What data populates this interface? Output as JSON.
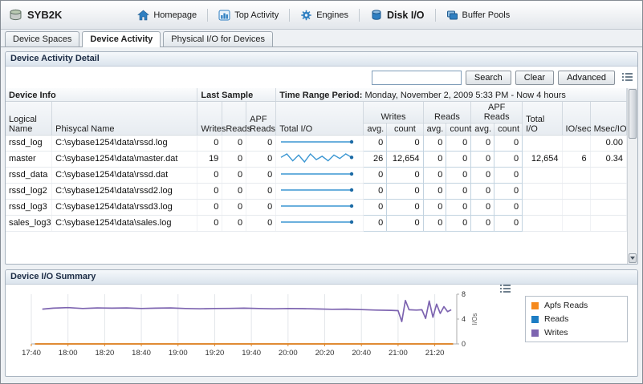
{
  "window": {
    "server_name": "SYB2K"
  },
  "nav": {
    "items": [
      {
        "label": "Homepage"
      },
      {
        "label": "Top Activity"
      },
      {
        "label": "Engines"
      },
      {
        "label": "Disk I/O"
      },
      {
        "label": "Buffer Pools"
      }
    ]
  },
  "tabs": {
    "items": [
      {
        "label": "Device Spaces"
      },
      {
        "label": "Device Activity"
      },
      {
        "label": "Physical I/O for Devices"
      }
    ]
  },
  "detail": {
    "title": "Device Activity Detail",
    "search_value": "",
    "buttons": {
      "search": "Search",
      "clear": "Clear",
      "advanced": "Advanced"
    },
    "group_headers": {
      "device_info": "Device Info",
      "last_sample": "Last Sample",
      "time_range_label": "Time Range Period:",
      "time_range_value": "Monday, November 2, 2009  5:33 PM - Now  4 hours"
    },
    "columns": {
      "logical": "Logical Name",
      "physical": "Phisycal Name",
      "writes": "Writes",
      "reads": "Reads",
      "apf_reads": "APF Reads",
      "total_io_spark": "Total I/O",
      "grp_writes": "Writes",
      "grp_reads": "Reads",
      "grp_apf_reads": "APF Reads",
      "avg": "avg.",
      "count": "count",
      "total_io": "Total I/O",
      "io_sec": "IO/sec",
      "msec_io": "Msec/IO"
    },
    "rows": [
      {
        "logical": "rssd_log",
        "physical": "C:\\sybase1254\\data\\rssd.log",
        "writes": "0",
        "reads": "0",
        "apf_reads": "0",
        "w_avg": "0",
        "w_count": "0",
        "r_avg": "0",
        "r_count": "0",
        "a_avg": "0",
        "a_count": "0",
        "total_io": "",
        "io_sec": "",
        "msec_io": "0.00",
        "spark": [
          0,
          0,
          0,
          0,
          0,
          0,
          0,
          0,
          0,
          0
        ]
      },
      {
        "logical": "master",
        "physical": "C:\\sybase1254\\data\\master.dat",
        "writes": "19",
        "reads": "0",
        "apf_reads": "0",
        "w_avg": "26",
        "w_count": "12,654",
        "r_avg": "0",
        "r_count": "0",
        "a_avg": "0",
        "a_count": "0",
        "total_io": "12,654",
        "io_sec": "6",
        "msec_io": "0.34",
        "spark": [
          5.6,
          5.9,
          5.3,
          5.8,
          5.2,
          5.9,
          5.4,
          5.7,
          5.3,
          5.8,
          5.5,
          5.9,
          5.6
        ]
      },
      {
        "logical": "rssd_data",
        "physical": "C:\\sybase1254\\data\\rssd.dat",
        "writes": "0",
        "reads": "0",
        "apf_reads": "0",
        "w_avg": "0",
        "w_count": "0",
        "r_avg": "0",
        "r_count": "0",
        "a_avg": "0",
        "a_count": "0",
        "total_io": "",
        "io_sec": "",
        "msec_io": "",
        "spark": [
          0,
          0,
          0,
          0,
          0,
          0,
          0,
          0,
          0,
          0
        ]
      },
      {
        "logical": "rssd_log2",
        "physical": "C:\\sybase1254\\data\\rssd2.log",
        "writes": "0",
        "reads": "0",
        "apf_reads": "0",
        "w_avg": "0",
        "w_count": "0",
        "r_avg": "0",
        "r_count": "0",
        "a_avg": "0",
        "a_count": "0",
        "total_io": "",
        "io_sec": "",
        "msec_io": "",
        "spark": [
          0,
          0,
          0,
          0,
          0,
          0,
          0,
          0,
          0,
          0
        ]
      },
      {
        "logical": "rssd_log3",
        "physical": "C:\\sybase1254\\data\\rssd3.log",
        "writes": "0",
        "reads": "0",
        "apf_reads": "0",
        "w_avg": "0",
        "w_count": "0",
        "r_avg": "0",
        "r_count": "0",
        "a_avg": "0",
        "a_count": "0",
        "total_io": "",
        "io_sec": "",
        "msec_io": "",
        "spark": [
          0,
          0,
          0,
          0,
          0,
          0,
          0,
          0,
          0,
          0
        ]
      },
      {
        "logical": "sales_log3",
        "physical": "C:\\sybase1254\\data\\sales.log",
        "writes": "0",
        "reads": "0",
        "apf_reads": "0",
        "w_avg": "0",
        "w_count": "0",
        "r_avg": "0",
        "r_count": "0",
        "a_avg": "0",
        "a_count": "0",
        "total_io": "",
        "io_sec": "",
        "msec_io": "",
        "spark": [
          0,
          0,
          0,
          0,
          0,
          0,
          0,
          0,
          0,
          0
        ]
      }
    ]
  },
  "summary": {
    "title": "Device I/O Summary"
  },
  "chart_data": {
    "type": "line",
    "title": "Device I/O Summary",
    "xlabel": "",
    "ylabel": "I/Os",
    "ylim": [
      0,
      8
    ],
    "y_ticks": [
      0,
      4,
      8
    ],
    "x_max": 232,
    "grid": true,
    "legend_position": "right",
    "x_ticks": [
      {
        "t": 0,
        "label": "17:40"
      },
      {
        "t": 20,
        "label": "18:00"
      },
      {
        "t": 40,
        "label": "18:20"
      },
      {
        "t": 60,
        "label": "18:40"
      },
      {
        "t": 80,
        "label": "19:00"
      },
      {
        "t": 100,
        "label": "19:20"
      },
      {
        "t": 120,
        "label": "19:40"
      },
      {
        "t": 140,
        "label": "20:00"
      },
      {
        "t": 160,
        "label": "20:20"
      },
      {
        "t": 180,
        "label": "20:40"
      },
      {
        "t": 200,
        "label": "21:00"
      },
      {
        "t": 220,
        "label": "21:20"
      }
    ],
    "series": [
      {
        "name": "Apfs Reads",
        "color": "#f5891d",
        "points": [
          [
            2,
            0
          ],
          [
            230,
            0
          ]
        ]
      },
      {
        "name": "Reads",
        "color": "#1d7dc4",
        "points": [
          [
            2,
            0
          ],
          [
            230,
            0
          ]
        ]
      },
      {
        "name": "Writes",
        "color": "#7d64b0",
        "points": [
          [
            6,
            5.6
          ],
          [
            12,
            5.75
          ],
          [
            20,
            5.85
          ],
          [
            28,
            5.7
          ],
          [
            36,
            5.8
          ],
          [
            44,
            5.75
          ],
          [
            52,
            5.8
          ],
          [
            60,
            5.7
          ],
          [
            68,
            5.75
          ],
          [
            76,
            5.8
          ],
          [
            84,
            5.7
          ],
          [
            92,
            5.65
          ],
          [
            100,
            5.7
          ],
          [
            108,
            5.72
          ],
          [
            116,
            5.75
          ],
          [
            124,
            5.7
          ],
          [
            132,
            5.65
          ],
          [
            140,
            5.7
          ],
          [
            148,
            5.68
          ],
          [
            156,
            5.62
          ],
          [
            164,
            5.58
          ],
          [
            172,
            5.6
          ],
          [
            180,
            5.52
          ],
          [
            188,
            5.45
          ],
          [
            196,
            5.4
          ],
          [
            200,
            5.35
          ],
          [
            202,
            3.6
          ],
          [
            204,
            7.0
          ],
          [
            206,
            5.5
          ],
          [
            210,
            5.45
          ],
          [
            213,
            5.5
          ],
          [
            215,
            4.1
          ],
          [
            217,
            6.9
          ],
          [
            219,
            4.3
          ],
          [
            221,
            6.4
          ],
          [
            223,
            4.9
          ],
          [
            225,
            6.0
          ],
          [
            227,
            5.2
          ],
          [
            229,
            5.5
          ]
        ]
      }
    ]
  },
  "colors": {
    "accent_blue": "#2f7fc1",
    "spark_line": "#3a96d2",
    "spark_dot": "#1b6aa5",
    "apfs_reads": "#f5891d",
    "reads": "#1d7dc4",
    "writes": "#7d64b0"
  }
}
